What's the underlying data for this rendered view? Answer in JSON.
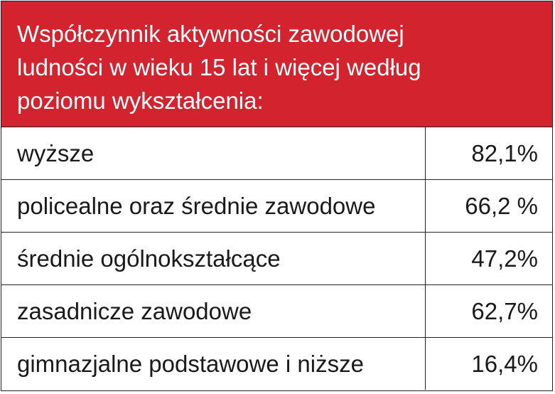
{
  "header": {
    "title_lines": [
      "Współczynnik aktywności zawodowej",
      "ludności w wieku 15 lat i więcej według",
      "poziomu wykształcenia:"
    ]
  },
  "table": {
    "rows": [
      [
        "wyższe",
        "82,1%"
      ],
      [
        "policealne oraz średnie zawodowe",
        "66,2 %"
      ],
      [
        "średnie ogólnokształcące",
        "47,2%"
      ],
      [
        "zasadnicze zawodowe",
        "62,7%"
      ],
      [
        "gimnazjalne podstawowe i niższe",
        "16,4%"
      ]
    ]
  }
}
